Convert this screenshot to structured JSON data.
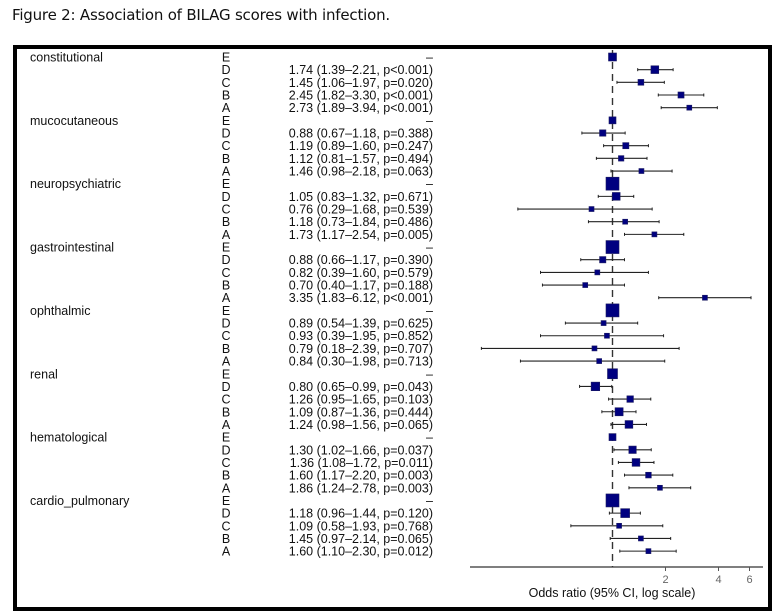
{
  "figure": {
    "caption": "Figure 2: Association of BILAG scores with infection."
  },
  "chart_data": {
    "type": "forest",
    "title": "",
    "xlabel": "Odds ratio (95% CI, log scale)",
    "xscale": "log",
    "reference_value": 1,
    "xticks": [
      2,
      4,
      6
    ],
    "xtick_labels": [
      "2",
      "4",
      "6"
    ],
    "xlim": [
      0.16,
      6.5
    ],
    "marker_color": "#000080",
    "groups": [
      {
        "name": "constitutional",
        "rows": [
          {
            "level": "E",
            "or": 1,
            "lo": null,
            "hi": null,
            "label": "–"
          },
          {
            "level": "D",
            "or": 1.74,
            "lo": 1.39,
            "hi": 2.21,
            "label": "1.74 (1.39–2.21, p<0.001)"
          },
          {
            "level": "C",
            "or": 1.45,
            "lo": 1.06,
            "hi": 1.97,
            "label": "1.45 (1.06–1.97, p=0.020)"
          },
          {
            "level": "B",
            "or": 2.45,
            "lo": 1.82,
            "hi": 3.3,
            "label": "2.45 (1.82–3.30, p<0.001)"
          },
          {
            "level": "A",
            "or": 2.73,
            "lo": 1.89,
            "hi": 3.94,
            "label": "2.73 (1.89–3.94, p<0.001)"
          }
        ]
      },
      {
        "name": "mucocutaneous",
        "rows": [
          {
            "level": "E",
            "or": 1,
            "lo": null,
            "hi": null,
            "label": "–"
          },
          {
            "level": "D",
            "or": 0.88,
            "lo": 0.67,
            "hi": 1.18,
            "label": "0.88 (0.67–1.18, p=0.388)"
          },
          {
            "level": "C",
            "or": 1.19,
            "lo": 0.89,
            "hi": 1.6,
            "label": "1.19 (0.89–1.60, p=0.247)"
          },
          {
            "level": "B",
            "or": 1.12,
            "lo": 0.81,
            "hi": 1.57,
            "label": "1.12 (0.81–1.57, p=0.494)"
          },
          {
            "level": "A",
            "or": 1.46,
            "lo": 0.98,
            "hi": 2.18,
            "label": "1.46 (0.98–2.18, p=0.063)"
          }
        ]
      },
      {
        "name": "neuropsychiatric",
        "rows": [
          {
            "level": "E",
            "or": 1,
            "lo": null,
            "hi": null,
            "label": "–"
          },
          {
            "level": "D",
            "or": 1.05,
            "lo": 0.83,
            "hi": 1.32,
            "label": "1.05 (0.83–1.32, p=0.671)"
          },
          {
            "level": "C",
            "or": 0.76,
            "lo": 0.29,
            "hi": 1.68,
            "label": "0.76 (0.29–1.68, p=0.539)"
          },
          {
            "level": "B",
            "or": 1.18,
            "lo": 0.73,
            "hi": 1.84,
            "label": "1.18 (0.73–1.84, p=0.486)"
          },
          {
            "level": "A",
            "or": 1.73,
            "lo": 1.17,
            "hi": 2.54,
            "label": "1.73 (1.17–2.54, p=0.005)"
          }
        ]
      },
      {
        "name": "gastrointestinal",
        "rows": [
          {
            "level": "E",
            "or": 1,
            "lo": null,
            "hi": null,
            "label": "–"
          },
          {
            "level": "D",
            "or": 0.88,
            "lo": 0.66,
            "hi": 1.17,
            "label": "0.88 (0.66–1.17, p=0.390)"
          },
          {
            "level": "C",
            "or": 0.82,
            "lo": 0.39,
            "hi": 1.6,
            "label": "0.82 (0.39–1.60, p=0.579)"
          },
          {
            "level": "B",
            "or": 0.7,
            "lo": 0.4,
            "hi": 1.17,
            "label": "0.70 (0.40–1.17, p=0.188)"
          },
          {
            "level": "A",
            "or": 3.35,
            "lo": 1.83,
            "hi": 6.12,
            "label": "3.35 (1.83–6.12, p<0.001)"
          }
        ]
      },
      {
        "name": "ophthalmic",
        "rows": [
          {
            "level": "E",
            "or": 1,
            "lo": null,
            "hi": null,
            "label": "–"
          },
          {
            "level": "D",
            "or": 0.89,
            "lo": 0.54,
            "hi": 1.39,
            "label": "0.89 (0.54–1.39, p=0.625)"
          },
          {
            "level": "C",
            "or": 0.93,
            "lo": 0.39,
            "hi": 1.95,
            "label": "0.93 (0.39–1.95, p=0.852)"
          },
          {
            "level": "B",
            "or": 0.79,
            "lo": 0.18,
            "hi": 2.39,
            "label": "0.79 (0.18–2.39, p=0.707)"
          },
          {
            "level": "A",
            "or": 0.84,
            "lo": 0.3,
            "hi": 1.98,
            "label": "0.84 (0.30–1.98, p=0.713)"
          }
        ]
      },
      {
        "name": "renal",
        "rows": [
          {
            "level": "E",
            "or": 1,
            "lo": null,
            "hi": null,
            "label": "–"
          },
          {
            "level": "D",
            "or": 0.8,
            "lo": 0.65,
            "hi": 0.99,
            "label": "0.80 (0.65–0.99, p=0.043)"
          },
          {
            "level": "C",
            "or": 1.26,
            "lo": 0.95,
            "hi": 1.65,
            "label": "1.26 (0.95–1.65, p=0.103)"
          },
          {
            "level": "B",
            "or": 1.09,
            "lo": 0.87,
            "hi": 1.36,
            "label": "1.09 (0.87–1.36, p=0.444)"
          },
          {
            "level": "A",
            "or": 1.24,
            "lo": 0.98,
            "hi": 1.56,
            "label": "1.24 (0.98–1.56, p=0.065)"
          }
        ]
      },
      {
        "name": "hematological",
        "rows": [
          {
            "level": "E",
            "or": 1,
            "lo": null,
            "hi": null,
            "label": "–"
          },
          {
            "level": "D",
            "or": 1.3,
            "lo": 1.02,
            "hi": 1.66,
            "label": "1.30 (1.02–1.66, p=0.037)"
          },
          {
            "level": "C",
            "or": 1.36,
            "lo": 1.08,
            "hi": 1.72,
            "label": "1.36 (1.08–1.72, p=0.011)"
          },
          {
            "level": "B",
            "or": 1.6,
            "lo": 1.17,
            "hi": 2.2,
            "label": "1.60 (1.17–2.20, p=0.003)"
          },
          {
            "level": "A",
            "or": 1.86,
            "lo": 1.24,
            "hi": 2.78,
            "label": "1.86 (1.24–2.78, p=0.003)"
          }
        ]
      },
      {
        "name": "cardio_pulmonary",
        "rows": [
          {
            "level": "E",
            "or": 1,
            "lo": null,
            "hi": null,
            "label": "–"
          },
          {
            "level": "D",
            "or": 1.18,
            "lo": 0.96,
            "hi": 1.44,
            "label": "1.18 (0.96–1.44, p=0.120)"
          },
          {
            "level": "C",
            "or": 1.09,
            "lo": 0.58,
            "hi": 1.93,
            "label": "1.09 (0.58–1.93, p=0.768)"
          },
          {
            "level": "B",
            "or": 1.45,
            "lo": 0.97,
            "hi": 2.14,
            "label": "1.45 (0.97–2.14, p=0.065)"
          },
          {
            "level": "A",
            "or": 1.6,
            "lo": 1.1,
            "hi": 2.3,
            "label": "1.60 (1.10–2.30, p=0.012)"
          }
        ]
      }
    ]
  }
}
